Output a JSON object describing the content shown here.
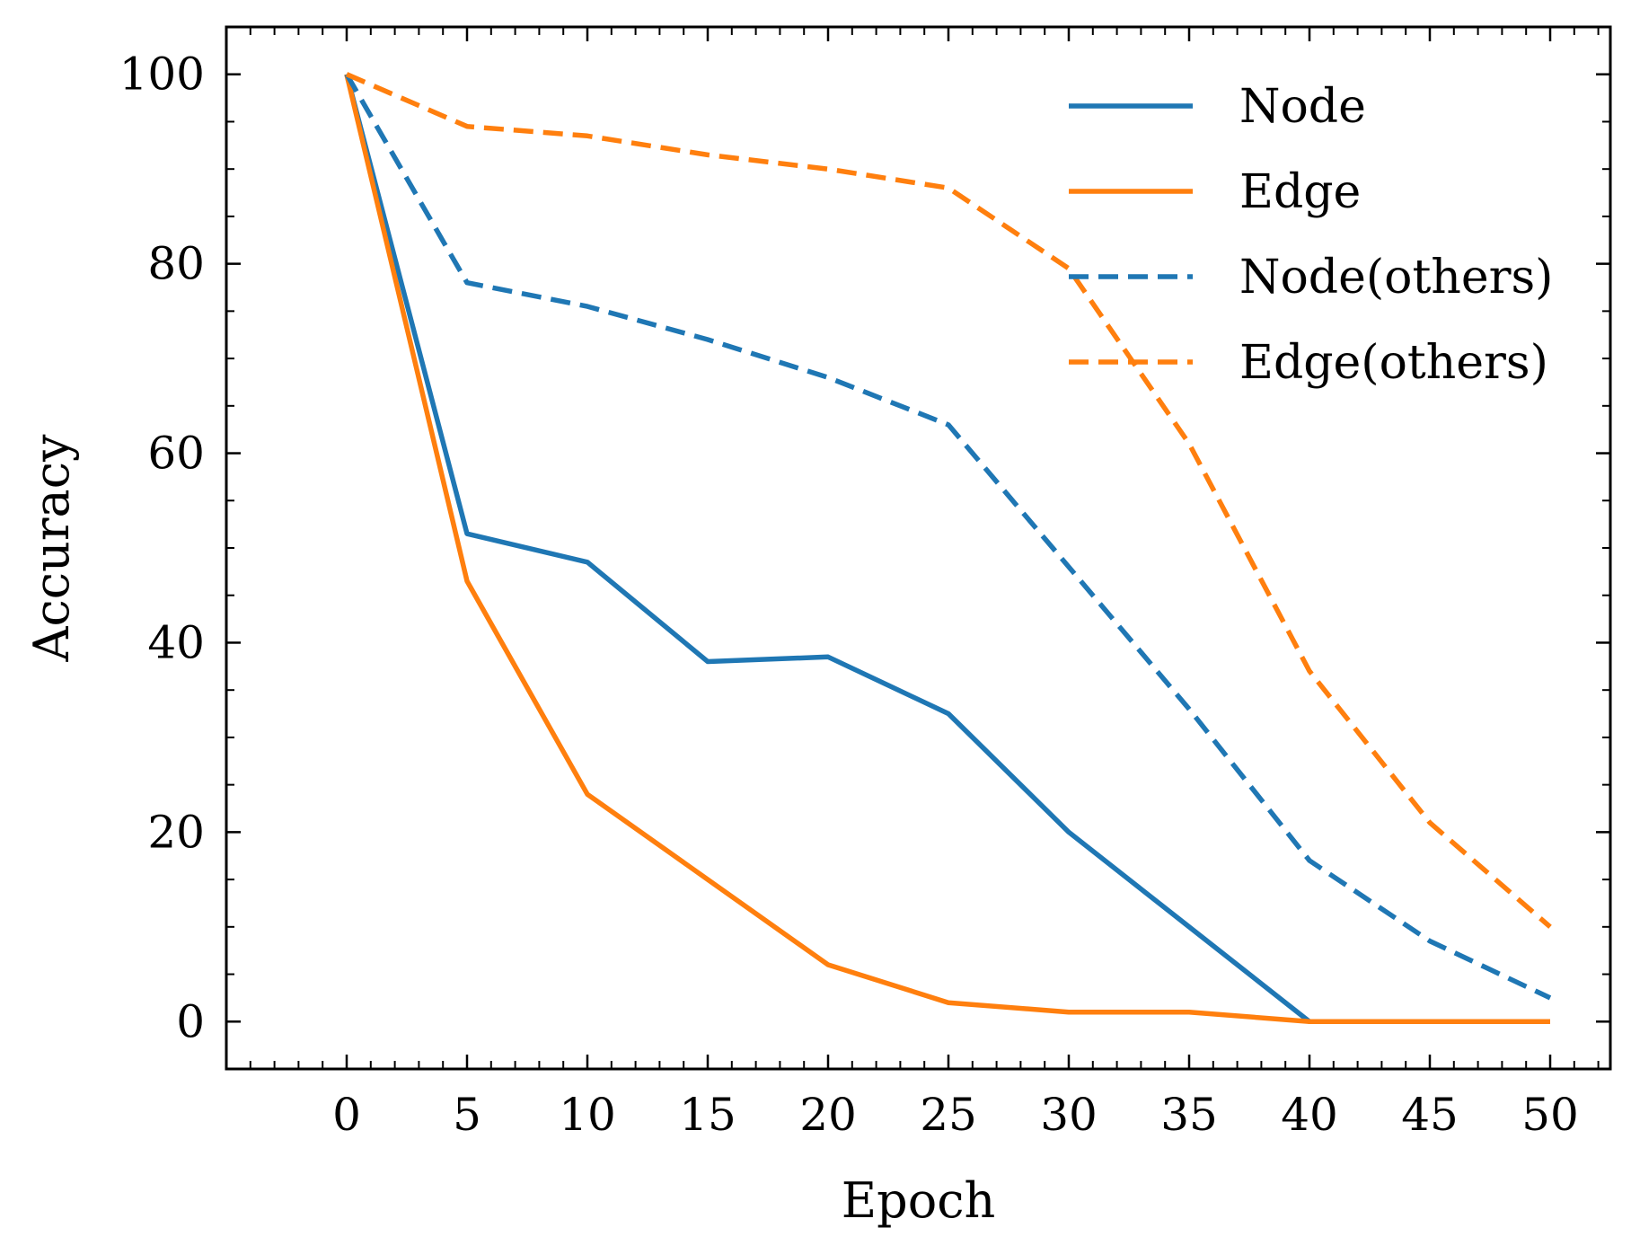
{
  "chart_data": {
    "type": "line",
    "title": "",
    "xlabel": "Epoch",
    "ylabel": "Accuracy",
    "xlim": [
      -5,
      52.5
    ],
    "ylim": [
      -5,
      105
    ],
    "xticks": [
      0,
      5,
      10,
      15,
      20,
      25,
      30,
      35,
      40,
      45,
      50
    ],
    "yticks": [
      0,
      20,
      40,
      60,
      80,
      100
    ],
    "x_minor_step": 1,
    "y_minor_step": 5,
    "grid": false,
    "legend_position": "top-right",
    "x": [
      0,
      5,
      10,
      15,
      20,
      25,
      30,
      35,
      40,
      45,
      50
    ],
    "series": [
      {
        "name": "Node",
        "color": "#1f77b4",
        "style": "solid",
        "values": [
          100,
          51.5,
          48.5,
          38,
          38.5,
          32.5,
          20,
          10,
          0,
          0,
          0
        ]
      },
      {
        "name": "Edge",
        "color": "#ff7f0e",
        "style": "solid",
        "values": [
          100,
          46.5,
          24,
          15,
          6,
          2,
          1,
          1,
          0,
          0,
          0
        ]
      },
      {
        "name": "Node(others)",
        "color": "#1f77b4",
        "style": "dashed",
        "values": [
          100,
          78,
          75.5,
          72,
          68,
          63,
          48,
          33,
          17,
          8.5,
          2.5
        ]
      },
      {
        "name": "Edge(others)",
        "color": "#ff7f0e",
        "style": "dashed",
        "values": [
          100,
          94.5,
          93.5,
          91.5,
          90,
          88,
          79.5,
          61,
          37,
          21,
          10
        ]
      }
    ]
  }
}
